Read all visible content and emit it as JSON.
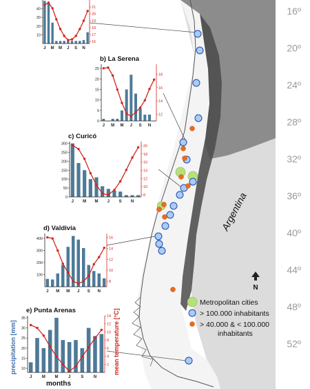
{
  "map": {
    "country_label": "Argentina",
    "north_label": "N",
    "latitudes": [
      "16º",
      "20º",
      "24º",
      "28º",
      "32º",
      "36º",
      "40º",
      "44º",
      "48º",
      "52º"
    ],
    "colors": {
      "ocean": "#ffffff",
      "land_south": "#dcdcdc",
      "land_north": "#8c8c8c",
      "andes": "#4a4a4a",
      "chile": "#ffffff",
      "metro": "#b8e07a",
      "large": "#a9cdf1",
      "medium": "#ee6a1e",
      "bar": "#4e7a98",
      "line": "#d0281e"
    }
  },
  "legend": {
    "metropolitan": "Metropolitan cities",
    "large": "> 100.000 inhabitants",
    "medium_line1": "> 40.000 & < 100.000",
    "medium_line2": "inhabitants"
  },
  "axes": {
    "left_label": "precipitation [mm]",
    "right_label": "mean temperature [°C]",
    "bottom_label": "months"
  },
  "chart_data": [
    {
      "type": "bar",
      "title": "",
      "categories": [
        "J",
        "F",
        "M",
        "A",
        "M",
        "J",
        "J",
        "A",
        "S",
        "O",
        "N",
        "D"
      ],
      "month_ticks": [
        "J",
        "M",
        "M",
        "J",
        "S",
        "N"
      ],
      "series": [
        {
          "values": [
            49,
            48,
            24,
            3,
            3,
            3,
            3,
            3,
            3,
            3,
            4,
            13
          ]
        },
        {
          "values": [
            21.3,
            21.6,
            20.8,
            19.2,
            17.8,
            16.8,
            16.2,
            16.3,
            16.8,
            17.8,
            19.0,
            20.4
          ]
        }
      ],
      "y_left_ticks": [
        "10",
        "20",
        "30",
        "40"
      ],
      "y_right_ticks": [
        "16",
        "17",
        "18",
        "19",
        "20",
        "21"
      ],
      "ylim_left": [
        0,
        50
      ],
      "ylim_right": [
        15.7,
        22
      ]
    },
    {
      "type": "bar",
      "title": "b) La Serena",
      "categories": [
        "J",
        "F",
        "M",
        "A",
        "M",
        "J",
        "J",
        "A",
        "S",
        "O",
        "N",
        "D"
      ],
      "month_ticks": [
        "J",
        "M",
        "M",
        "J",
        "S",
        "N"
      ],
      "series": [
        {
          "values": [
            1,
            0,
            1,
            1,
            5,
            15,
            22,
            13,
            6,
            3,
            3,
            0
          ]
        },
        {
          "values": [
            18.9,
            19.0,
            17.8,
            15.7,
            13.7,
            12.1,
            11.7,
            12.3,
            13.0,
            14.1,
            15.8,
            17.2
          ]
        }
      ],
      "y_left_ticks": [
        "0",
        "5",
        "10",
        "15",
        "20",
        "25"
      ],
      "y_right_ticks": [
        "12",
        "14",
        "16",
        "18"
      ],
      "ylim_left": [
        0,
        27
      ],
      "ylim_right": [
        11,
        19.5
      ]
    },
    {
      "type": "bar",
      "title": "c) Curicó",
      "categories": [
        "J",
        "F",
        "M",
        "A",
        "M",
        "J",
        "J",
        "A",
        "S",
        "O",
        "N",
        "D"
      ],
      "month_ticks": [
        "J",
        "M",
        "M",
        "J",
        "S",
        "N"
      ],
      "series": [
        {
          "values": [
            300,
            190,
            150,
            100,
            110,
            60,
            45,
            35,
            30,
            10,
            10,
            10
          ]
        },
        {
          "values": [
            20.1,
            19.2,
            16.8,
            13.3,
            10.4,
            8.3,
            8.0,
            9.2,
            11.3,
            14.1,
            17.1,
            19.6
          ]
        }
      ],
      "y_left_ticks": [
        "0",
        "50",
        "100",
        "150",
        "200",
        "250",
        "300"
      ],
      "y_right_ticks": [
        "8",
        "10",
        "12",
        "14",
        "16",
        "18",
        "20"
      ],
      "ylim_left": [
        0,
        310
      ],
      "ylim_right": [
        7.5,
        21
      ]
    },
    {
      "type": "bar",
      "title": "d) Valdivia",
      "categories": [
        "J",
        "F",
        "M",
        "A",
        "M",
        "J",
        "J",
        "A",
        "S",
        "O",
        "N",
        "D"
      ],
      "month_ticks": [
        "J",
        "M",
        "M",
        "J",
        "S",
        "N"
      ],
      "series": [
        {
          "values": [
            65,
            60,
            110,
            180,
            330,
            420,
            390,
            320,
            180,
            130,
            110,
            70
          ]
        },
        {
          "values": [
            16.0,
            15.8,
            13.6,
            11.2,
            9.6,
            8.0,
            7.6,
            8.0,
            9.0,
            11.1,
            12.4,
            14.1
          ]
        }
      ],
      "y_left_ticks": [
        "100",
        "200",
        "300",
        "400"
      ],
      "y_right_ticks": [
        "8",
        "10",
        "12",
        "14",
        "16"
      ],
      "ylim_left": [
        0,
        440
      ],
      "ylim_right": [
        7,
        16.7
      ]
    },
    {
      "type": "bar",
      "title": "e) Punta Arenas",
      "categories": [
        "J",
        "F",
        "M",
        "A",
        "M",
        "J",
        "J",
        "A",
        "S",
        "O",
        "N",
        "D"
      ],
      "month_ticks": [
        "J",
        "M",
        "M",
        "J",
        "S",
        "N"
      ],
      "series": [
        {
          "values": [
            13,
            25,
            20,
            29,
            35,
            24,
            23,
            24,
            20,
            30,
            26,
            27
          ]
        },
        {
          "values": [
            11.7,
            11.0,
            9.1,
            6.4,
            3.9,
            2.0,
            0.3,
            1.5,
            3.9,
            6.2,
            8.5,
            10.5
          ]
        }
      ],
      "y_left_ticks": [
        "10",
        "15",
        "20",
        "25",
        "30",
        "35"
      ],
      "y_right_ticks": [
        "2",
        "4",
        "6",
        "8",
        "10",
        "12",
        "14"
      ],
      "ylim_left": [
        8,
        36
      ],
      "ylim_right": [
        0,
        14
      ]
    }
  ]
}
